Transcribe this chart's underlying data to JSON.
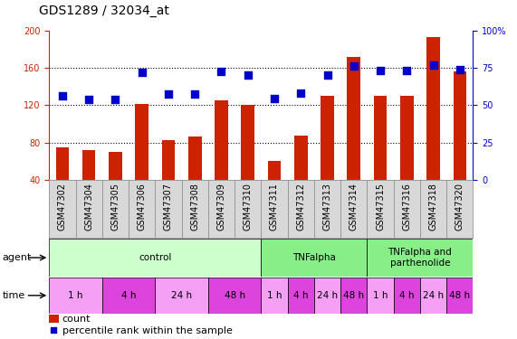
{
  "title": "GDS1289 / 32034_at",
  "samples": [
    "GSM47302",
    "GSM47304",
    "GSM47305",
    "GSM47306",
    "GSM47307",
    "GSM47308",
    "GSM47309",
    "GSM47310",
    "GSM47311",
    "GSM47312",
    "GSM47313",
    "GSM47314",
    "GSM47315",
    "GSM47316",
    "GSM47318",
    "GSM47320"
  ],
  "counts": [
    75,
    72,
    70,
    121,
    82,
    86,
    125,
    120,
    60,
    87,
    130,
    172,
    130,
    130,
    193,
    156
  ],
  "percentiles_left_scale": [
    130,
    126,
    126,
    155,
    132,
    132,
    156,
    152,
    127,
    133,
    152,
    162,
    157,
    157,
    163,
    158
  ],
  "ylim_left": [
    40,
    200
  ],
  "ylim_right": [
    0,
    100
  ],
  "yticks_left": [
    40,
    80,
    120,
    160,
    200
  ],
  "yticks_right": [
    0,
    25,
    50,
    75,
    100
  ],
  "bar_color": "#cc2200",
  "dot_color": "#0000cc",
  "agent_groups": [
    {
      "label": "control",
      "start": 0,
      "end": 8,
      "color": "#ccffcc"
    },
    {
      "label": "TNFalpha",
      "start": 8,
      "end": 12,
      "color": "#88ee88"
    },
    {
      "label": "TNFalpha and\nparthenolide",
      "start": 12,
      "end": 16,
      "color": "#88ee88"
    }
  ],
  "time_groups": [
    {
      "label": "1 h",
      "start": 0,
      "end": 2,
      "color": "#f5a0f5"
    },
    {
      "label": "4 h",
      "start": 2,
      "end": 4,
      "color": "#dd44dd"
    },
    {
      "label": "24 h",
      "start": 4,
      "end": 6,
      "color": "#f5a0f5"
    },
    {
      "label": "48 h",
      "start": 6,
      "end": 8,
      "color": "#dd44dd"
    },
    {
      "label": "1 h",
      "start": 8,
      "end": 9,
      "color": "#f5a0f5"
    },
    {
      "label": "4 h",
      "start": 9,
      "end": 10,
      "color": "#dd44dd"
    },
    {
      "label": "24 h",
      "start": 10,
      "end": 11,
      "color": "#f5a0f5"
    },
    {
      "label": "48 h",
      "start": 11,
      "end": 12,
      "color": "#dd44dd"
    },
    {
      "label": "1 h",
      "start": 12,
      "end": 13,
      "color": "#f5a0f5"
    },
    {
      "label": "4 h",
      "start": 13,
      "end": 14,
      "color": "#dd44dd"
    },
    {
      "label": "24 h",
      "start": 14,
      "end": 15,
      "color": "#f5a0f5"
    },
    {
      "label": "48 h",
      "start": 15,
      "end": 16,
      "color": "#dd44dd"
    }
  ],
  "bar_width": 0.5,
  "dot_size": 35,
  "grid_color": "black",
  "bg_color": "#ffffff",
  "plot_bg_color": "#ffffff",
  "xlabel_bg_color": "#d8d8d8",
  "left_axis_color": "#cc2200",
  "right_axis_color": "#0000cc",
  "fontsize_ticks": 7,
  "fontsize_labels": 7.5,
  "fontsize_title": 10
}
